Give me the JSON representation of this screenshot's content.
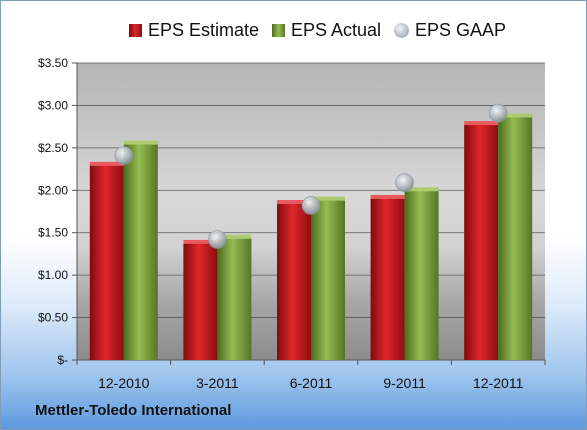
{
  "chart_data": {
    "type": "bar",
    "categories": [
      "12-2010",
      "3-2011",
      "6-2011",
      "9-2011",
      "12-2011"
    ],
    "series": [
      {
        "name": "EPS Estimate",
        "values": [
          2.3,
          1.38,
          1.85,
          1.91,
          2.78
        ],
        "color": "#c0161b",
        "kind": "bar"
      },
      {
        "name": "EPS Actual",
        "values": [
          2.55,
          1.44,
          1.89,
          2.0,
          2.87
        ],
        "color": "#7a9e3a",
        "kind": "bar"
      },
      {
        "name": "EPS GAAP",
        "values": [
          2.41,
          1.42,
          1.82,
          2.09,
          2.91
        ],
        "color": "#b8bfc6",
        "kind": "marker"
      }
    ],
    "ylim": [
      0,
      3.5
    ],
    "yticks": [
      0,
      0.5,
      1.0,
      1.5,
      2.0,
      2.5,
      3.0,
      3.5
    ],
    "ytick_labels": [
      "$-",
      "$0.50",
      "$1.00",
      "$1.50",
      "$2.00",
      "$2.50",
      "$3.00",
      "$3.50"
    ],
    "legend_position": "top",
    "grid": true
  },
  "footer": {
    "company": "Mettler-Toledo International"
  }
}
